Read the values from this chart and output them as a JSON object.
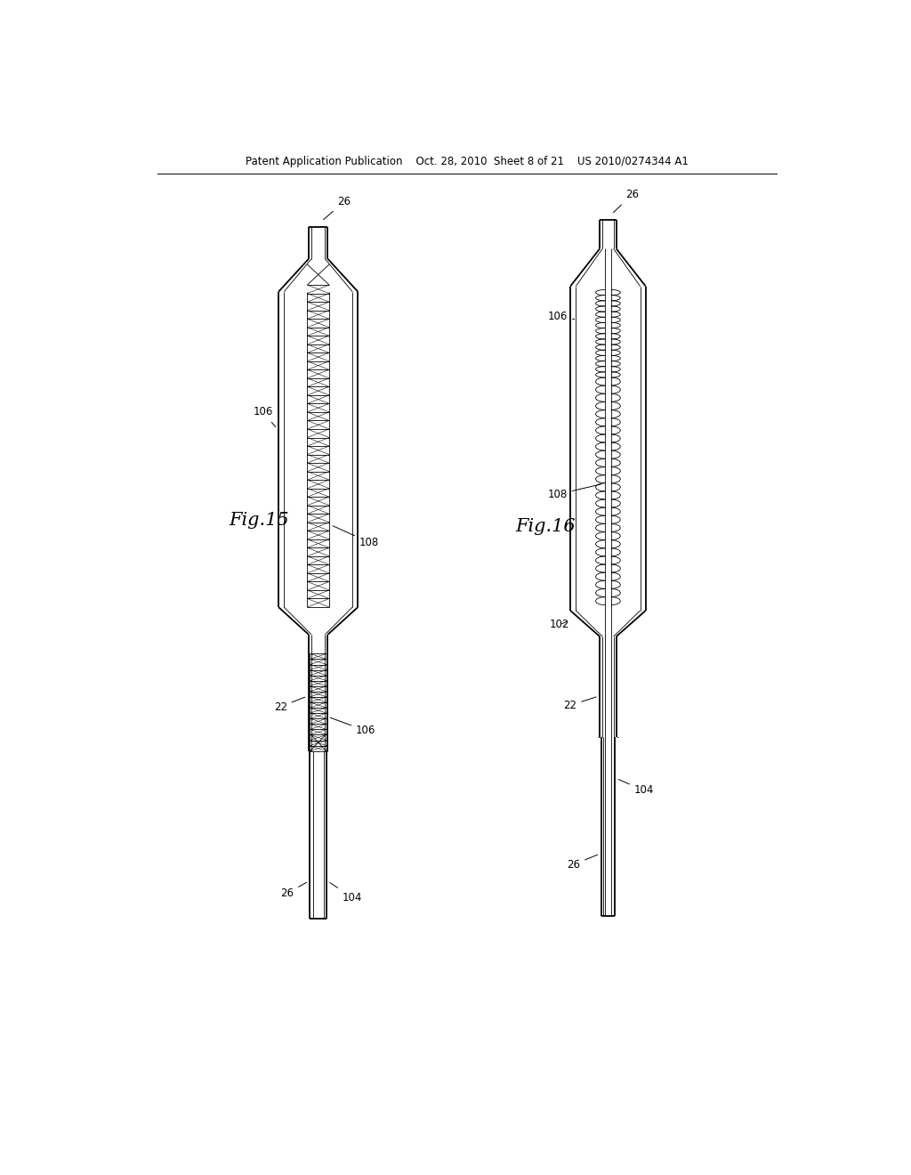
{
  "bg_color": "#ffffff",
  "line_color": "#000000",
  "header_text": "Patent Application Publication    Oct. 28, 2010  Sheet 8 of 21    US 2010/0274344 A1",
  "fig15_label": "Fig.15",
  "fig16_label": "Fig.16"
}
